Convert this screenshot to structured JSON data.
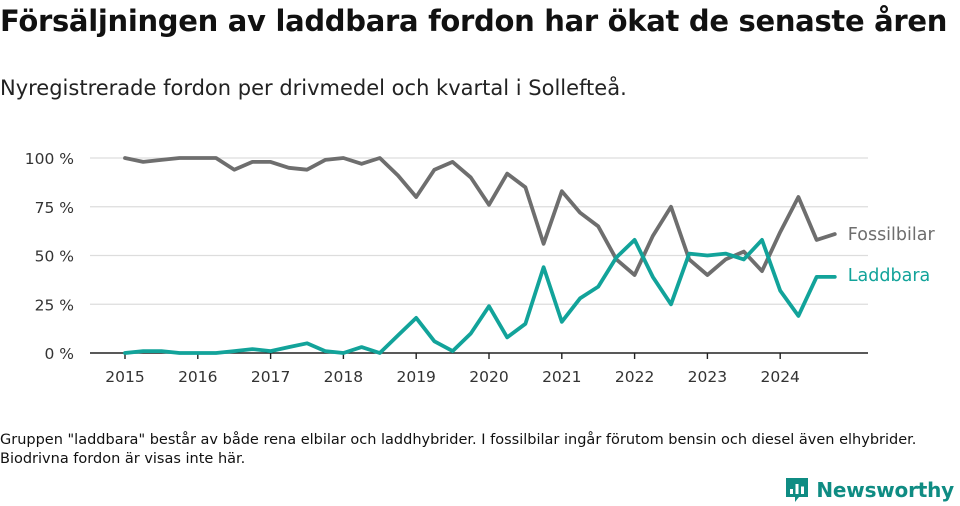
{
  "title": "Försäljningen av laddbara fordon har ökat de senaste åren",
  "subtitle": "Nyregistrerade fordon per drivmedel och kvartal i Sollefteå.",
  "footnote": "Gruppen \"laddbara\" består av både rena elbilar och laddhybrider. I fossilbilar ingår förutom bensin och diesel även elhybrider. Biodrivna fordon är visas inte här.",
  "brand": {
    "name": "Newsworthy",
    "icon": "bar-chart-logo-icon",
    "color": "#0f8c83"
  },
  "chart_data": {
    "type": "line",
    "title": "Försäljningen av laddbara fordon har ökat de senaste åren",
    "subtitle": "Nyregistrerade fordon per drivmedel och kvartal i Sollefteå.",
    "xlabel": "",
    "ylabel": "",
    "x_ticks": [
      "2015",
      "2016",
      "2017",
      "2018",
      "2019",
      "2020",
      "2021",
      "2022",
      "2023",
      "2024"
    ],
    "xlim": [
      2015,
      2025
    ],
    "ylim": [
      0,
      100
    ],
    "y_ticks": [
      0,
      25,
      50,
      75,
      100
    ],
    "y_tick_labels": [
      "0 %",
      "25 %",
      "50 %",
      "75 %",
      "100 %"
    ],
    "grid": true,
    "legend": "direct labels at right end of lines",
    "x": [
      2015.0,
      2015.25,
      2015.5,
      2015.75,
      2016.0,
      2016.25,
      2016.5,
      2016.75,
      2017.0,
      2017.25,
      2017.5,
      2017.75,
      2018.0,
      2018.25,
      2018.5,
      2018.75,
      2019.0,
      2019.25,
      2019.5,
      2019.75,
      2020.0,
      2020.25,
      2020.5,
      2020.75,
      2021.0,
      2021.25,
      2021.5,
      2021.75,
      2022.0,
      2022.25,
      2022.5,
      2022.75,
      2023.0,
      2023.25,
      2023.5,
      2023.75,
      2024.0,
      2024.25,
      2024.5,
      2024.75
    ],
    "series": [
      {
        "name": "Fossilbilar",
        "color": "#6e6e6e",
        "values": [
          100,
          98,
          99,
          100,
          100,
          100,
          94,
          98,
          98,
          95,
          94,
          99,
          100,
          97,
          100,
          91,
          80,
          94,
          98,
          90,
          76,
          92,
          85,
          56,
          83,
          72,
          65,
          48,
          40,
          60,
          75,
          48,
          40,
          48,
          52,
          42,
          62,
          80,
          58,
          61
        ]
      },
      {
        "name": "Laddbara",
        "color": "#12a39a",
        "values": [
          0,
          1,
          1,
          0,
          0,
          0,
          1,
          2,
          1,
          3,
          5,
          1,
          0,
          3,
          0,
          9,
          18,
          6,
          1,
          10,
          24,
          8,
          15,
          44,
          16,
          28,
          34,
          49,
          58,
          39,
          25,
          51,
          50,
          51,
          48,
          58,
          32,
          19,
          39,
          39
        ]
      }
    ]
  }
}
